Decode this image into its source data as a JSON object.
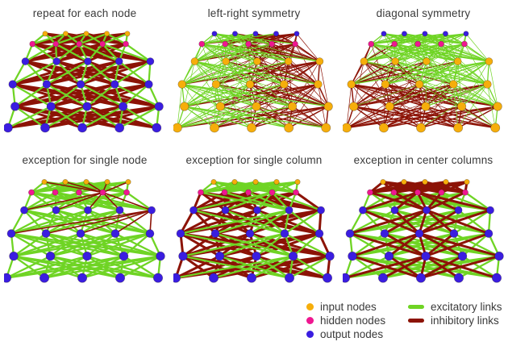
{
  "colors": {
    "input": "#f6ae0b",
    "hidden": "#ef1790",
    "output": "#3a1de0",
    "excitatory": "#6fd424",
    "inhibitory": "#8c1306",
    "title_text": "#3a3a3a",
    "background": "#ffffff"
  },
  "network": {
    "rows": 6,
    "cols": 5
  },
  "panels": [
    {
      "title": "repeat for each node",
      "row_colors": [
        "input",
        "hidden",
        "output",
        "output",
        "output",
        "output"
      ],
      "rule": "repeat-each-node",
      "density": "thick",
      "red_on_top": false
    },
    {
      "title": "left-right symmetry",
      "row_colors": [
        "output",
        "hidden",
        "input",
        "input",
        "input",
        "input"
      ],
      "rule": "left-right",
      "density": "thin",
      "red_on_top": false
    },
    {
      "title": "diagonal symmetry",
      "row_colors": [
        "output",
        "hidden",
        "input",
        "input",
        "input",
        "input"
      ],
      "rule": "diagonal",
      "density": "thin",
      "red_on_top": false
    },
    {
      "title": "exception for single node",
      "row_colors": [
        "input",
        "hidden",
        "output",
        "output",
        "output",
        "output"
      ],
      "rule": "single-node",
      "density": "thick",
      "red_on_top": true
    },
    {
      "title": "exception for single column",
      "row_colors": [
        "input",
        "hidden",
        "output",
        "output",
        "output",
        "output"
      ],
      "rule": "single-column",
      "density": "thick",
      "red_on_top": false
    },
    {
      "title": "exception in center columns",
      "row_colors": [
        "input",
        "hidden",
        "output",
        "output",
        "output",
        "output"
      ],
      "rule": "center-columns",
      "density": "thick",
      "red_on_top": true
    }
  ],
  "legend": {
    "node_items": [
      {
        "label": "input nodes",
        "color_key": "input"
      },
      {
        "label": "hidden nodes",
        "color_key": "hidden"
      },
      {
        "label": "output nodes",
        "color_key": "output"
      }
    ],
    "link_items": [
      {
        "label": "excitatory links",
        "color_key": "excitatory"
      },
      {
        "label": "inhibitory links",
        "color_key": "inhibitory"
      }
    ]
  }
}
